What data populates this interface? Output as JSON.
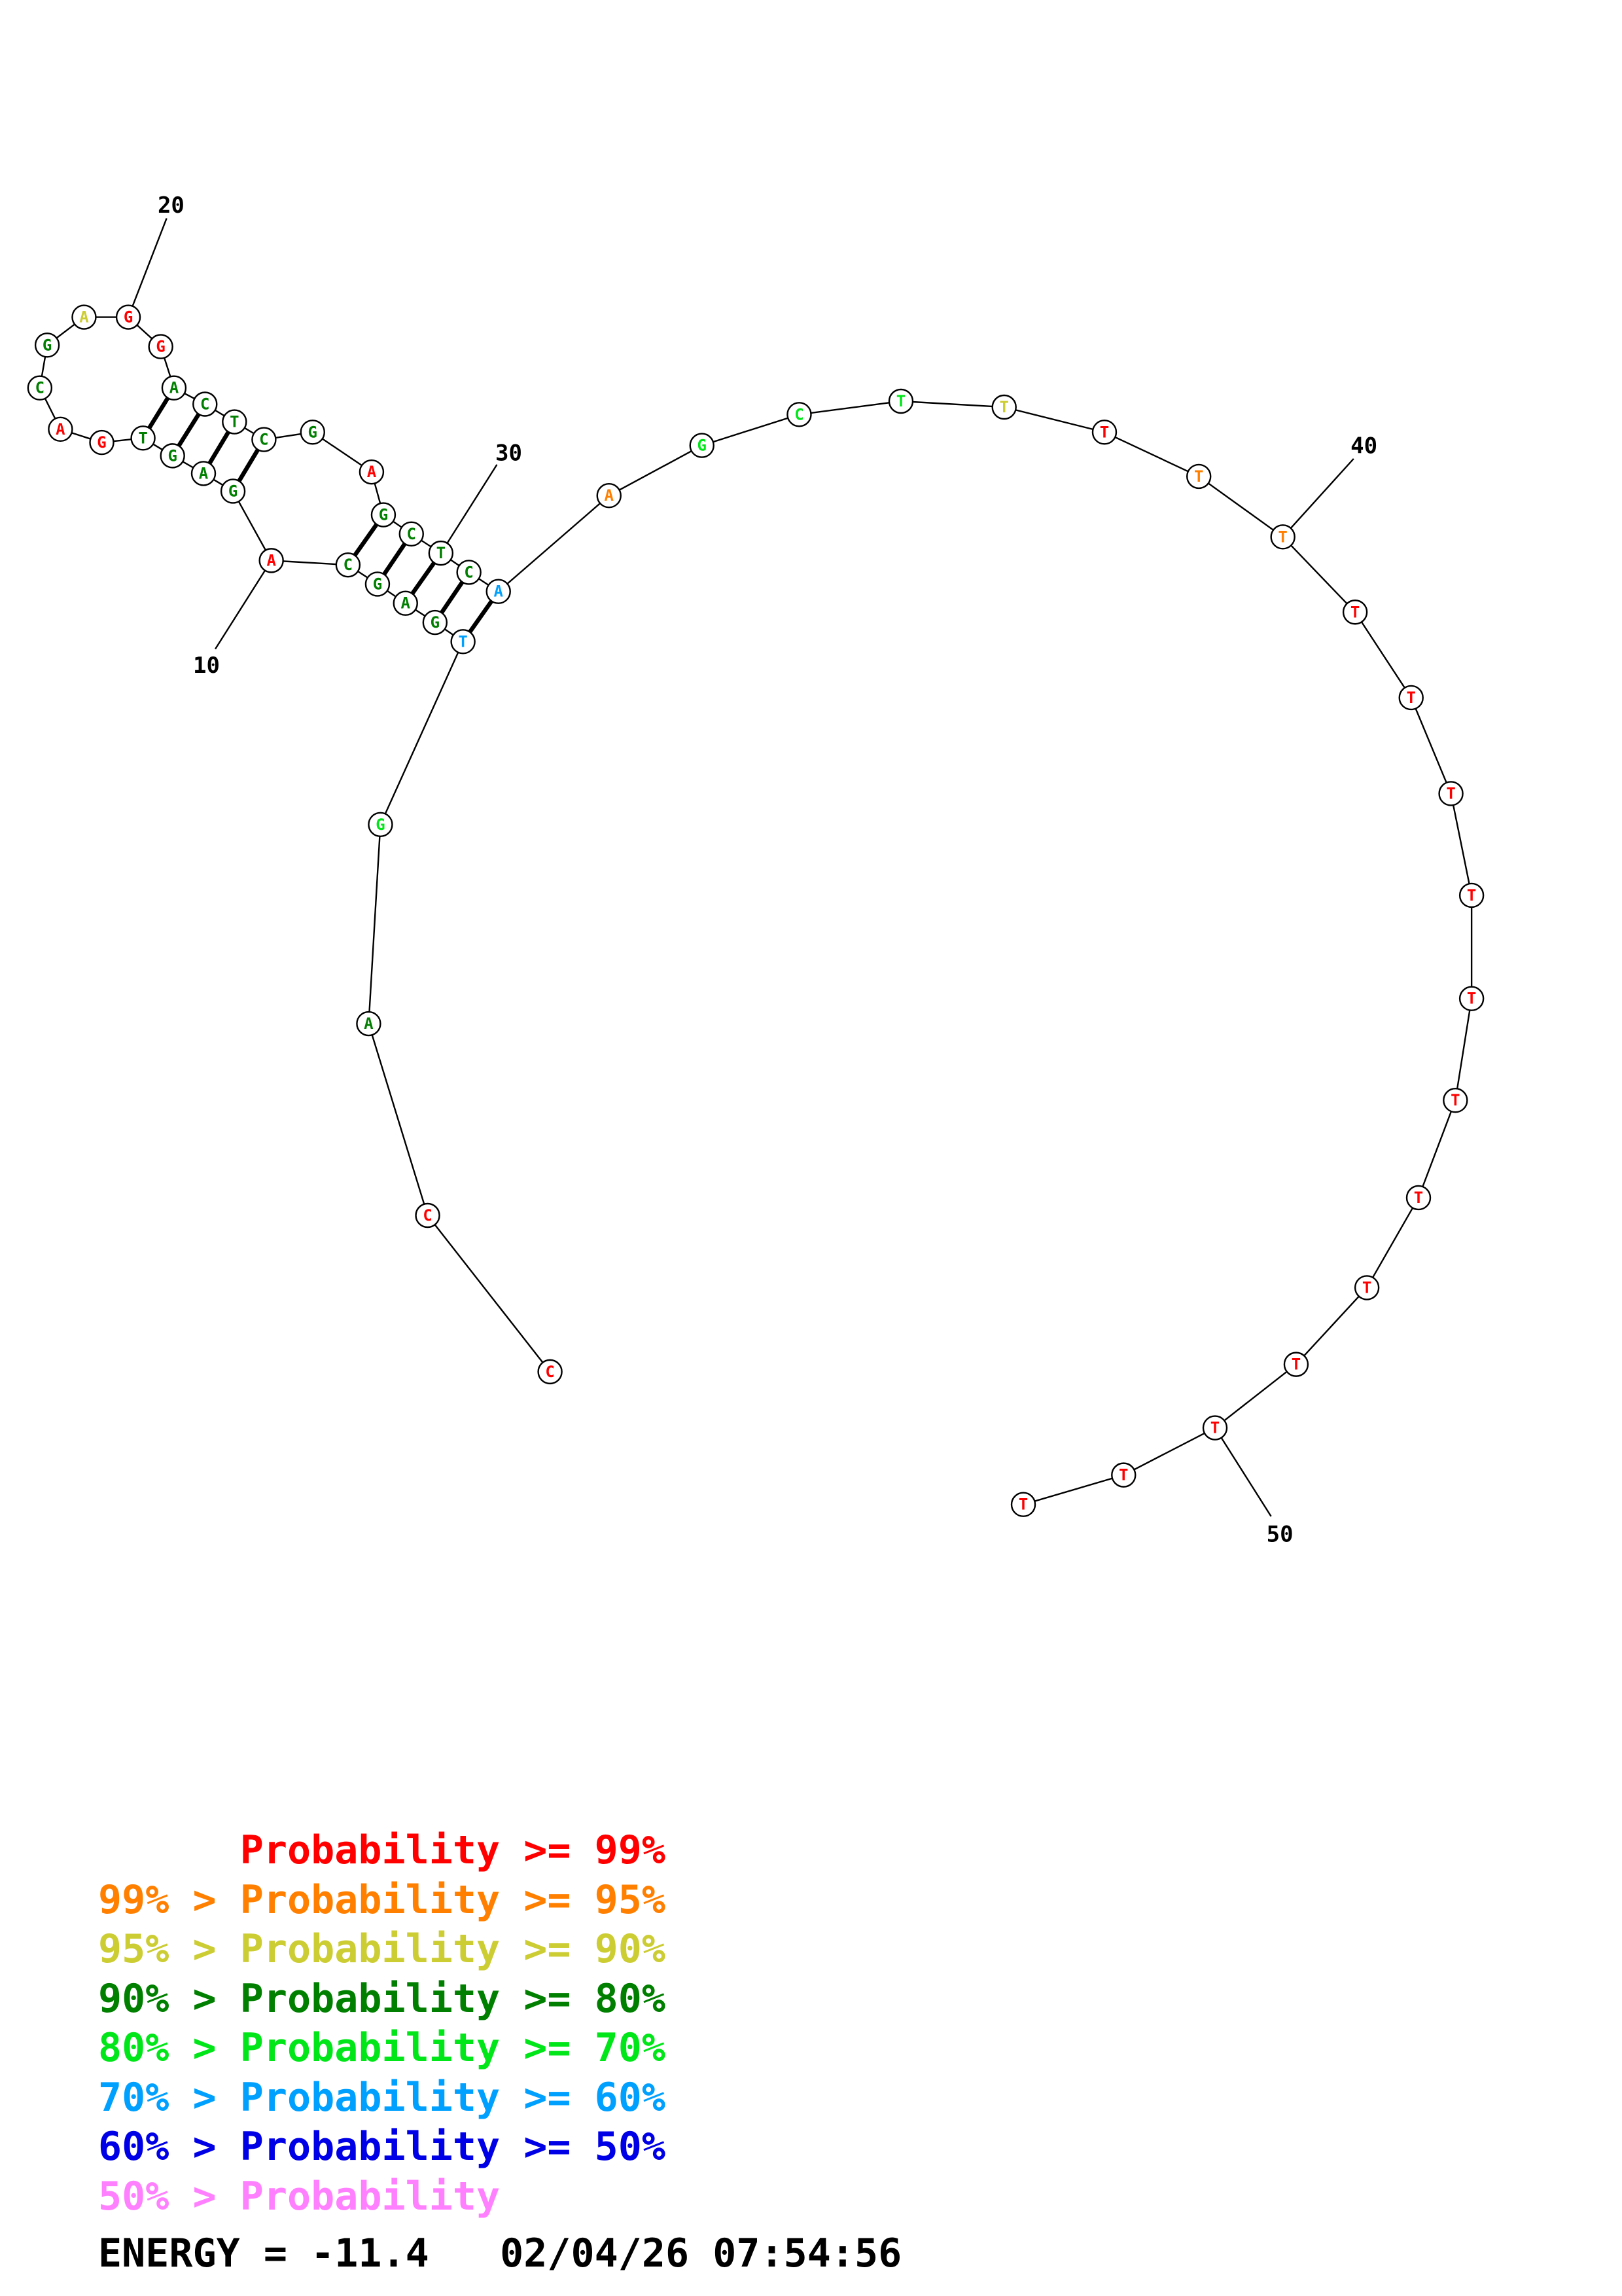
{
  "colors": {
    "p99": "#ff0000",
    "p95": "#ff8000",
    "p90": "#cccc33",
    "p80": "#007f00",
    "p70": "#00e619",
    "p60": "#00a0ff",
    "p50": "#0000e6",
    "p0": "#ff80ff"
  },
  "structure": {
    "bases": [
      {
        "i": 1,
        "base": "C",
        "color": "p99"
      },
      {
        "i": 2,
        "base": "C",
        "color": "p99"
      },
      {
        "i": 3,
        "base": "A",
        "color": "p80"
      },
      {
        "i": 4,
        "base": "G",
        "color": "p70"
      },
      {
        "i": 5,
        "base": "T",
        "color": "p60"
      },
      {
        "i": 6,
        "base": "G",
        "color": "p80"
      },
      {
        "i": 7,
        "base": "A",
        "color": "p80"
      },
      {
        "i": 8,
        "base": "G",
        "color": "p80"
      },
      {
        "i": 9,
        "base": "C",
        "color": "p80"
      },
      {
        "i": 10,
        "base": "A",
        "color": "p99"
      },
      {
        "i": 11,
        "base": "G",
        "color": "p80"
      },
      {
        "i": 12,
        "base": "A",
        "color": "p80"
      },
      {
        "i": 13,
        "base": "G",
        "color": "p80"
      },
      {
        "i": 14,
        "base": "T",
        "color": "p80"
      },
      {
        "i": 15,
        "base": "G",
        "color": "p99"
      },
      {
        "i": 16,
        "base": "A",
        "color": "p99"
      },
      {
        "i": 17,
        "base": "C",
        "color": "p80"
      },
      {
        "i": 18,
        "base": "G",
        "color": "p80"
      },
      {
        "i": 19,
        "base": "A",
        "color": "p90"
      },
      {
        "i": 20,
        "base": "G",
        "color": "p99"
      },
      {
        "i": 21,
        "base": "G",
        "color": "p99"
      },
      {
        "i": 22,
        "base": "A",
        "color": "p80"
      },
      {
        "i": 23,
        "base": "C",
        "color": "p80"
      },
      {
        "i": 24,
        "base": "T",
        "color": "p80"
      },
      {
        "i": 25,
        "base": "C",
        "color": "p80"
      },
      {
        "i": 26,
        "base": "G",
        "color": "p80"
      },
      {
        "i": 27,
        "base": "A",
        "color": "p99"
      },
      {
        "i": 28,
        "base": "G",
        "color": "p80"
      },
      {
        "i": 29,
        "base": "C",
        "color": "p80"
      },
      {
        "i": 30,
        "base": "T",
        "color": "p80"
      },
      {
        "i": 31,
        "base": "C",
        "color": "p80"
      },
      {
        "i": 32,
        "base": "A",
        "color": "p60"
      },
      {
        "i": 33,
        "base": "A",
        "color": "p95"
      },
      {
        "i": 34,
        "base": "G",
        "color": "p70"
      },
      {
        "i": 35,
        "base": "C",
        "color": "p70"
      },
      {
        "i": 36,
        "base": "T",
        "color": "p70"
      },
      {
        "i": 37,
        "base": "T",
        "color": "p90"
      },
      {
        "i": 38,
        "base": "T",
        "color": "p99"
      },
      {
        "i": 39,
        "base": "T",
        "color": "p95"
      },
      {
        "i": 40,
        "base": "T",
        "color": "p95"
      },
      {
        "i": 41,
        "base": "T",
        "color": "p99"
      },
      {
        "i": 42,
        "base": "T",
        "color": "p99"
      },
      {
        "i": 43,
        "base": "T",
        "color": "p99"
      },
      {
        "i": 44,
        "base": "T",
        "color": "p99"
      },
      {
        "i": 45,
        "base": "T",
        "color": "p99"
      },
      {
        "i": 46,
        "base": "T",
        "color": "p99"
      },
      {
        "i": 47,
        "base": "T",
        "color": "p99"
      },
      {
        "i": 48,
        "base": "T",
        "color": "p99"
      },
      {
        "i": 49,
        "base": "T",
        "color": "p99"
      },
      {
        "i": 50,
        "base": "T",
        "color": "p99"
      },
      {
        "i": 51,
        "base": "T",
        "color": "p99"
      },
      {
        "i": 52,
        "base": "T",
        "color": "p99"
      }
    ],
    "pairs": [
      [
        5,
        32
      ],
      [
        6,
        31
      ],
      [
        7,
        30
      ],
      [
        8,
        29
      ],
      [
        9,
        28
      ],
      [
        11,
        25
      ],
      [
        12,
        24
      ],
      [
        13,
        23
      ],
      [
        14,
        22
      ]
    ],
    "position_labels": [
      {
        "i": 10,
        "text": "10"
      },
      {
        "i": 20,
        "text": "20"
      },
      {
        "i": 30,
        "text": "30"
      },
      {
        "i": 40,
        "text": "40"
      },
      {
        "i": 50,
        "text": "50"
      }
    ]
  },
  "legend": [
    {
      "prefix": "",
      "text": "Probability >= 99%",
      "color": "p99"
    },
    {
      "prefix": "99% > ",
      "text": "Probability >= 95%",
      "color": "p95"
    },
    {
      "prefix": "95% > ",
      "text": "Probability >= 90%",
      "color": "p90"
    },
    {
      "prefix": "90% > ",
      "text": "Probability >= 80%",
      "color": "p80"
    },
    {
      "prefix": "80% > ",
      "text": "Probability >= 70%",
      "color": "p70"
    },
    {
      "prefix": "70% > ",
      "text": "Probability >= 60%",
      "color": "p60"
    },
    {
      "prefix": "60% > ",
      "text": "Probability >= 50%",
      "color": "p50"
    },
    {
      "prefix": "50% > ",
      "text": "Probability",
      "color": "p0"
    }
  ],
  "footer": {
    "energy_label": "ENERGY = -11.4",
    "datetime": "02/04/26 07:54:56"
  }
}
